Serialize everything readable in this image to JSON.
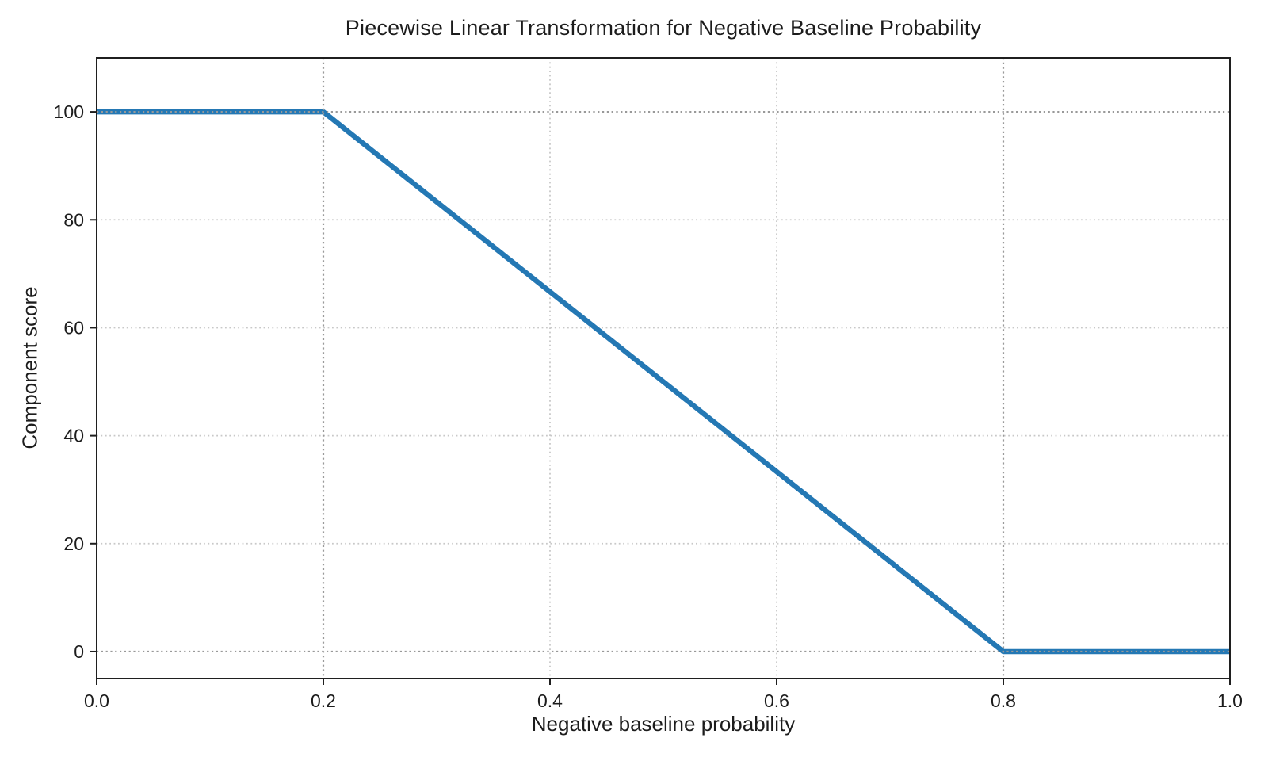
{
  "figure": {
    "background": "#ffffff"
  },
  "chart_data": {
    "type": "line",
    "title": "Piecewise Linear Transformation for Negative Baseline Probability",
    "xlabel": "Negative baseline probability",
    "ylabel": "Component score",
    "xlim": [
      0.0,
      1.0
    ],
    "ylim": [
      -5,
      110
    ],
    "x_ticks": [
      {
        "value": 0.0,
        "label": "0.0"
      },
      {
        "value": 0.2,
        "label": "0.2"
      },
      {
        "value": 0.4,
        "label": "0.4"
      },
      {
        "value": 0.6,
        "label": "0.6"
      },
      {
        "value": 0.8,
        "label": "0.8"
      },
      {
        "value": 1.0,
        "label": "1.0"
      }
    ],
    "y_ticks": [
      {
        "value": 0,
        "label": "0"
      },
      {
        "value": 20,
        "label": "20"
      },
      {
        "value": 40,
        "label": "40"
      },
      {
        "value": 60,
        "label": "60"
      },
      {
        "value": 80,
        "label": "80"
      },
      {
        "value": 100,
        "label": "100"
      }
    ],
    "series": [
      {
        "name": "piecewise-linear-transform",
        "color": "#2478b4",
        "line_width": 6.5,
        "points": [
          [
            0.0,
            100
          ],
          [
            0.2,
            100
          ],
          [
            0.8,
            0
          ],
          [
            1.0,
            0
          ]
        ]
      }
    ],
    "grid": {
      "on": true,
      "style": "dotted",
      "color": "#c8c8c8",
      "minor_x": [
        0.4,
        0.6
      ],
      "minor_y": [
        20,
        40,
        60,
        80
      ]
    },
    "reference_lines": {
      "style": "dotted",
      "color": "#999999",
      "x": [
        0.2,
        0.8
      ],
      "y": [
        0,
        100
      ]
    },
    "spine_color": "#1f1f1f",
    "legend_position": "none"
  }
}
